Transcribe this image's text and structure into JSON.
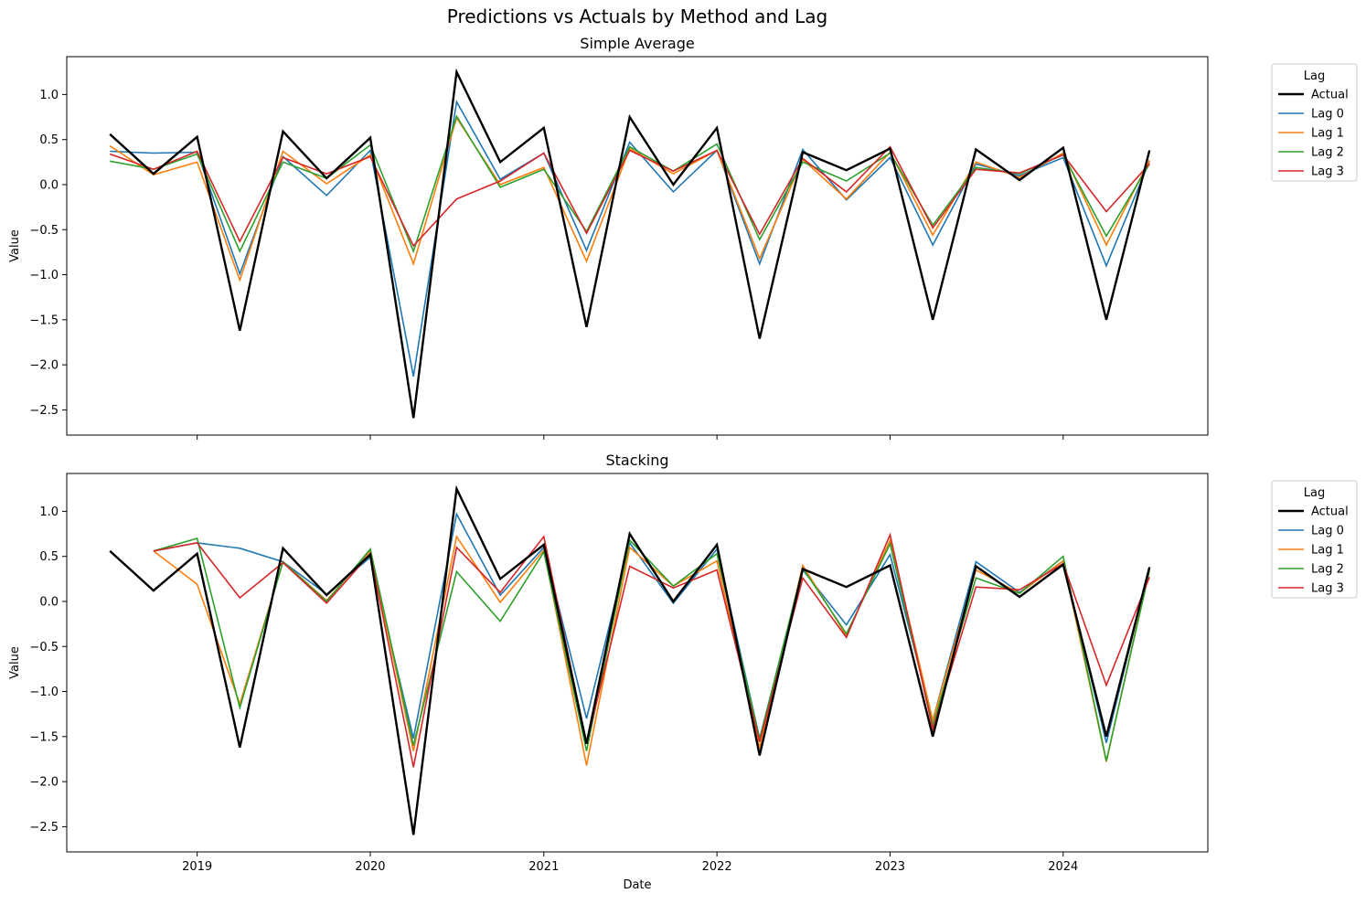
{
  "figure": {
    "suptitle": "Predictions vs Actuals by Method and Lag",
    "xlabel": "Date"
  },
  "colors": {
    "Actual": "#000000",
    "Lag 0": "#1f77b4",
    "Lag 1": "#ff7f0e",
    "Lag 2": "#2ca02c",
    "Lag 3": "#d62728"
  },
  "chart_data": [
    {
      "type": "line",
      "title": "Simple Average",
      "xlabel": "",
      "ylabel": "Value",
      "x": [
        "2018-07-01",
        "2018-10-01",
        "2019-01-01",
        "2019-04-01",
        "2019-07-01",
        "2019-10-01",
        "2020-01-01",
        "2020-04-01",
        "2020-07-01",
        "2020-10-01",
        "2021-01-01",
        "2021-04-01",
        "2021-07-01",
        "2021-10-01",
        "2022-01-01",
        "2022-04-01",
        "2022-07-01",
        "2022-10-01",
        "2023-01-01",
        "2023-04-01",
        "2023-07-01",
        "2023-10-01",
        "2024-01-01",
        "2024-04-01",
        "2024-07-01"
      ],
      "xlim": [
        "2018-04-01",
        "2024-11-01"
      ],
      "xticks": [
        "2019",
        "2020",
        "2021",
        "2022",
        "2023",
        "2024"
      ],
      "ylim": [
        -2.78,
        1.42
      ],
      "yticks": [
        "1.0",
        "0.5",
        "0.0",
        "−0.5",
        "−1.0",
        "−1.5",
        "−2.0",
        "−2.5"
      ],
      "ytick_values": [
        1.0,
        0.5,
        0.0,
        -0.5,
        -1.0,
        -1.5,
        -2.0,
        -2.5
      ],
      "legend": {
        "title": "Lag",
        "position": "outside-top-right"
      },
      "series": [
        {
          "name": "Actual",
          "values": [
            0.56,
            0.12,
            0.53,
            -1.62,
            0.59,
            0.07,
            0.52,
            -2.59,
            1.25,
            0.25,
            0.63,
            -1.58,
            0.75,
            0.0,
            0.63,
            -1.71,
            0.36,
            0.16,
            0.4,
            -1.5,
            0.39,
            0.05,
            0.41,
            -1.5,
            0.38
          ]
        },
        {
          "name": "Lag 0",
          "values": [
            0.37,
            0.35,
            0.36,
            -0.99,
            0.31,
            -0.12,
            0.38,
            -2.13,
            0.92,
            0.06,
            0.35,
            -0.73,
            0.47,
            -0.08,
            0.38,
            -0.88,
            0.39,
            -0.17,
            0.3,
            -0.67,
            0.23,
            0.1,
            0.3,
            -0.9,
            0.26
          ]
        },
        {
          "name": "Lag 1",
          "values": [
            0.43,
            0.11,
            0.25,
            -1.06,
            0.37,
            0.01,
            0.33,
            -0.88,
            0.74,
            0.0,
            0.19,
            -0.85,
            0.4,
            0.12,
            0.38,
            -0.82,
            0.28,
            -0.16,
            0.36,
            -0.56,
            0.25,
            0.08,
            0.35,
            -0.67,
            0.27
          ]
        },
        {
          "name": "Lag 2",
          "values": [
            0.26,
            0.17,
            0.34,
            -0.74,
            0.25,
            0.07,
            0.44,
            -0.74,
            0.76,
            -0.03,
            0.17,
            -0.52,
            0.42,
            0.15,
            0.45,
            -0.61,
            0.25,
            0.04,
            0.35,
            -0.45,
            0.19,
            0.12,
            0.33,
            -0.57,
            0.23
          ]
        },
        {
          "name": "Lag 3",
          "values": [
            0.34,
            0.17,
            0.37,
            -0.63,
            0.3,
            0.12,
            0.31,
            -0.68,
            -0.16,
            0.04,
            0.35,
            -0.54,
            0.38,
            0.15,
            0.38,
            -0.55,
            0.29,
            -0.08,
            0.42,
            -0.48,
            0.17,
            0.13,
            0.33,
            -0.3,
            0.23
          ]
        }
      ]
    },
    {
      "type": "line",
      "title": "Stacking",
      "xlabel": "Date",
      "ylabel": "Value",
      "x": [
        "2018-07-01",
        "2018-10-01",
        "2019-01-01",
        "2019-04-01",
        "2019-07-01",
        "2019-10-01",
        "2020-01-01",
        "2020-04-01",
        "2020-07-01",
        "2020-10-01",
        "2021-01-01",
        "2021-04-01",
        "2021-07-01",
        "2021-10-01",
        "2022-01-01",
        "2022-04-01",
        "2022-07-01",
        "2022-10-01",
        "2023-01-01",
        "2023-04-01",
        "2023-07-01",
        "2023-10-01",
        "2024-01-01",
        "2024-04-01",
        "2024-07-01"
      ],
      "xlim": [
        "2018-04-01",
        "2024-11-01"
      ],
      "xticks": [
        "2019",
        "2020",
        "2021",
        "2022",
        "2023",
        "2024"
      ],
      "ylim": [
        -2.78,
        1.42
      ],
      "yticks": [
        "1.0",
        "0.5",
        "0.0",
        "−0.5",
        "−1.0",
        "−1.5",
        "−2.0",
        "−2.5"
      ],
      "ytick_values": [
        1.0,
        0.5,
        0.0,
        -0.5,
        -1.0,
        -1.5,
        -2.0,
        -2.5
      ],
      "legend": {
        "title": "Lag",
        "position": "outside-top-right"
      },
      "series": [
        {
          "name": "Actual",
          "values": [
            0.56,
            0.12,
            0.53,
            -1.62,
            0.59,
            0.07,
            0.52,
            -2.59,
            1.25,
            0.25,
            0.63,
            -1.58,
            0.75,
            0.0,
            0.63,
            -1.71,
            0.36,
            0.16,
            0.4,
            -1.5,
            0.39,
            0.05,
            0.41,
            -1.5,
            0.38
          ]
        },
        {
          "name": "Lag 0",
          "values": [
            null,
            0.56,
            0.65,
            0.59,
            0.44,
            0.08,
            0.49,
            -1.52,
            0.97,
            0.07,
            0.6,
            -1.3,
            0.65,
            -0.02,
            0.58,
            -1.52,
            0.35,
            -0.26,
            0.52,
            -1.32,
            0.44,
            0.1,
            0.45,
            -1.57,
            0.38
          ]
        },
        {
          "name": "Lag 1",
          "values": [
            null,
            0.56,
            0.19,
            -1.14,
            0.44,
            0.01,
            0.56,
            -1.66,
            0.72,
            -0.01,
            0.57,
            -1.82,
            0.6,
            0.17,
            0.45,
            -1.63,
            0.4,
            -0.38,
            0.68,
            -1.32,
            0.35,
            0.09,
            0.45,
            -1.78,
            0.37
          ]
        },
        {
          "name": "Lag 2",
          "values": [
            null,
            0.56,
            0.7,
            -1.18,
            0.44,
            0.0,
            0.58,
            -1.6,
            0.33,
            -0.22,
            0.55,
            -1.66,
            0.68,
            0.17,
            0.53,
            -1.53,
            0.37,
            -0.36,
            0.64,
            -1.38,
            0.26,
            0.09,
            0.5,
            -1.77,
            0.34
          ]
        },
        {
          "name": "Lag 3",
          "values": [
            null,
            0.56,
            0.65,
            0.04,
            0.43,
            -0.02,
            0.53,
            -1.84,
            0.6,
            0.1,
            0.72,
            -1.58,
            0.39,
            0.15,
            0.35,
            -1.56,
            0.26,
            -0.4,
            0.74,
            -1.42,
            0.16,
            0.13,
            0.42,
            -0.93,
            0.27
          ]
        }
      ]
    }
  ]
}
